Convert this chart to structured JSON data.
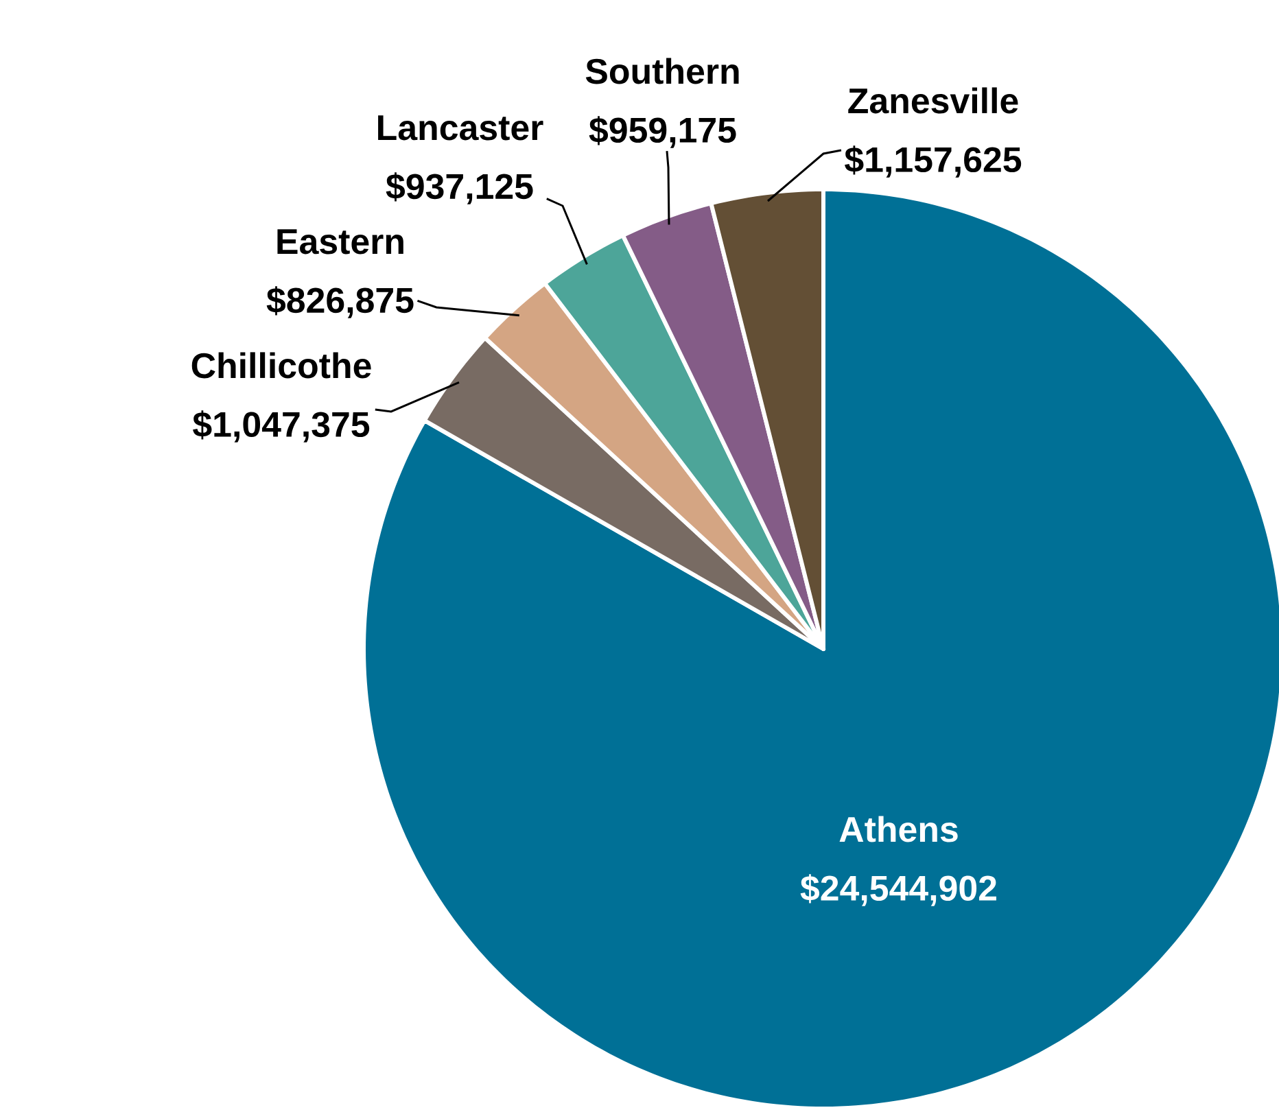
{
  "chart_data": {
    "type": "pie",
    "categories": [
      "Athens",
      "Chillicothe",
      "Eastern",
      "Lancaster",
      "Southern",
      "Zanesville"
    ],
    "values": [
      24544902,
      1047375,
      826875,
      937125,
      959175,
      1157625
    ],
    "value_labels": [
      "$24,544,902",
      "$1,047,375",
      "$826,875",
      "$937,125",
      "$959,175",
      "$1,157,625"
    ],
    "colors": [
      "#007096",
      "#786b63",
      "#d4a583",
      "#4da599",
      "#845c87",
      "#634f35"
    ]
  }
}
